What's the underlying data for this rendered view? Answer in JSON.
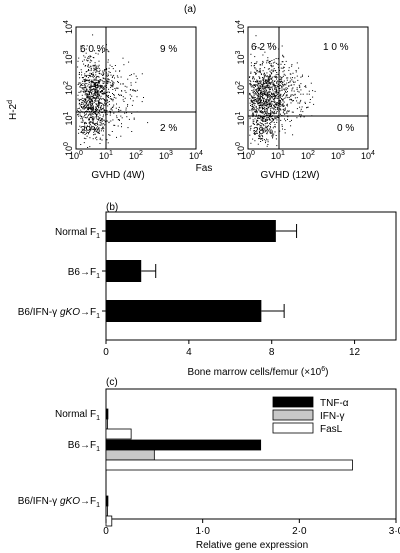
{
  "chart_data": [
    {
      "type": "scatter",
      "panel_label": "(a)",
      "ylabel": "H-2",
      "ylabel_sup": "d",
      "center_label": "Fas",
      "xticks": [
        "10",
        "10",
        "10",
        "10",
        "10"
      ],
      "xtick_exp": [
        "0",
        "1",
        "2",
        "3",
        "4"
      ],
      "yticks": [
        "10",
        "10",
        "10",
        "10",
        "10"
      ],
      "ytick_exp": [
        "0",
        "1",
        "2",
        "3",
        "4"
      ],
      "plots": [
        {
          "xlabel": "GVHD (4W)",
          "quadrants": {
            "ul": "6 0 %",
            "ur": "9 %",
            "ll": "29%",
            "lr": "2 %"
          }
        },
        {
          "xlabel": "GVHD (12W)",
          "quadrants": {
            "ul": "6 2 %",
            "ur": "1 0 %",
            "ll": "28%",
            "lr": "0 %"
          }
        }
      ]
    },
    {
      "type": "bar",
      "orientation": "horizontal",
      "panel_label": "(b)",
      "categories": [
        {
          "main": "Normal F",
          "sub": "1"
        },
        {
          "main": "B6→F",
          "sub": "1"
        },
        {
          "pre": "B6/IFN-γ ",
          "ital": "gKO",
          "main": "→F",
          "sub": "1"
        }
      ],
      "values": [
        8.2,
        1.7,
        7.5
      ],
      "errors": [
        1.0,
        0.7,
        1.1
      ],
      "xlim": [
        0,
        14
      ],
      "xticks": [
        "0",
        "4",
        "8",
        "12"
      ],
      "xlabel": "Bone marrow cells/femur (×10",
      "xlabel_sup": "6",
      "xlabel_end": ")"
    },
    {
      "type": "bar",
      "orientation": "horizontal",
      "panel_label": "(c)",
      "categories": [
        {
          "main": "Normal F",
          "sub": "1"
        },
        {
          "main": "B6→F",
          "sub": "1"
        },
        {
          "pre": "B6/IFN-γ ",
          "ital": "gKO",
          "main": "→F",
          "sub": "1"
        }
      ],
      "series": [
        {
          "name": "TNF-α",
          "values": [
            0.02,
            1.6,
            0.02
          ],
          "color": "#000000"
        },
        {
          "name": "IFN-γ",
          "values": [
            0.01,
            0.5,
            0.01
          ],
          "color": "#c8c8c8"
        },
        {
          "name": "FasL",
          "values": [
            0.26,
            2.55,
            0.06
          ],
          "color": "#ffffff"
        }
      ],
      "xlim": [
        0,
        3
      ],
      "xticks": [
        "0",
        "1·0",
        "2·0",
        "3·0"
      ],
      "xlabel": "Relative gene expression",
      "legend_position": "top-right"
    }
  ]
}
